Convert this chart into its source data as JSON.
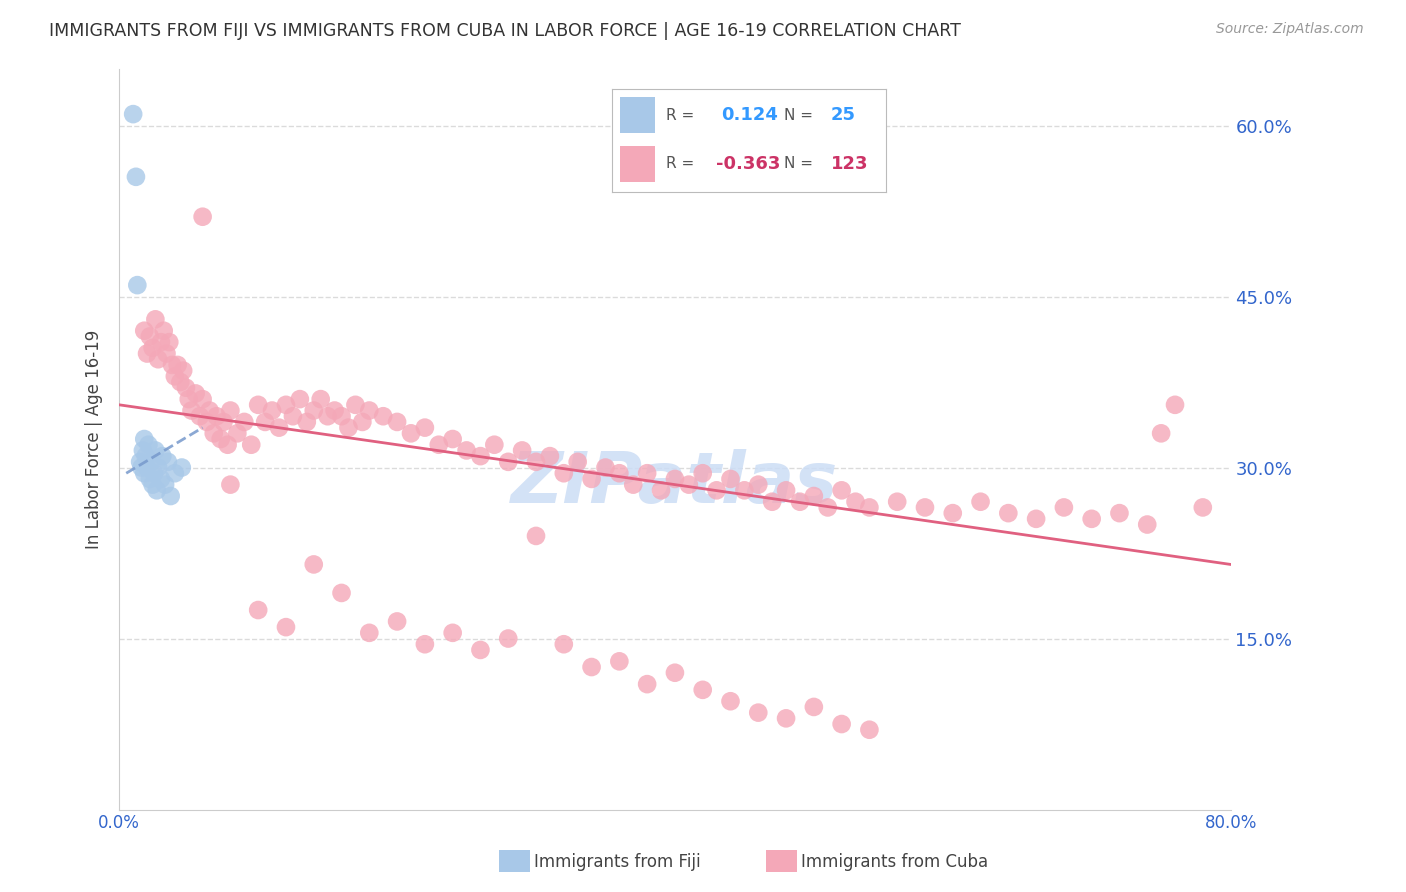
{
  "title": "IMMIGRANTS FROM FIJI VS IMMIGRANTS FROM CUBA IN LABOR FORCE | AGE 16-19 CORRELATION CHART",
  "source": "Source: ZipAtlas.com",
  "ylabel": "In Labor Force | Age 16-19",
  "xlim": [
    0.0,
    0.8
  ],
  "ylim": [
    0.0,
    0.65
  ],
  "xtick_values": [
    0.0,
    0.1,
    0.2,
    0.3,
    0.4,
    0.5,
    0.6,
    0.7,
    0.8
  ],
  "xticklabels": [
    "0.0%",
    "",
    "",
    "",
    "",
    "",
    "",
    "",
    "80.0%"
  ],
  "ytick_right_labels": [
    "60.0%",
    "45.0%",
    "30.0%",
    "15.0%"
  ],
  "ytick_right_values": [
    0.6,
    0.45,
    0.3,
    0.15
  ],
  "grid_color": "#cccccc",
  "fiji_color": "#a8c8e8",
  "cuba_color": "#f4a8b8",
  "fiji_trend_color": "#7799cc",
  "cuba_trend_color": "#e06080",
  "fiji_R": 0.124,
  "fiji_N": 25,
  "cuba_R": -0.363,
  "cuba_N": 123,
  "fiji_trend_x": [
    0.005,
    0.06
  ],
  "fiji_trend_y": [
    0.295,
    0.335
  ],
  "cuba_trend_x": [
    0.0,
    0.8
  ],
  "cuba_trend_y": [
    0.355,
    0.215
  ],
  "watermark_text": "ZIPatlas",
  "watermark_color": "#ccddf5",
  "background_color": "#ffffff",
  "legend_fiji_label": "Immigrants from Fiji",
  "legend_cuba_label": "Immigrants from Cuba",
  "legend_R_color": "#3399ff",
  "legend_cuba_R_color": "#cc3366",
  "fiji_x": [
    0.01,
    0.012,
    0.013,
    0.015,
    0.016,
    0.017,
    0.018,
    0.018,
    0.019,
    0.02,
    0.021,
    0.022,
    0.023,
    0.024,
    0.025,
    0.026,
    0.027,
    0.028,
    0.03,
    0.031,
    0.033,
    0.035,
    0.037,
    0.04,
    0.045
  ],
  "fiji_y": [
    0.61,
    0.555,
    0.46,
    0.305,
    0.3,
    0.315,
    0.325,
    0.295,
    0.31,
    0.3,
    0.32,
    0.29,
    0.305,
    0.285,
    0.295,
    0.315,
    0.28,
    0.3,
    0.29,
    0.31,
    0.285,
    0.305,
    0.275,
    0.295,
    0.3
  ],
  "cuba_x": [
    0.018,
    0.02,
    0.022,
    0.024,
    0.026,
    0.028,
    0.03,
    0.032,
    0.034,
    0.036,
    0.038,
    0.04,
    0.042,
    0.044,
    0.046,
    0.048,
    0.05,
    0.052,
    0.055,
    0.058,
    0.06,
    0.063,
    0.065,
    0.068,
    0.07,
    0.073,
    0.075,
    0.078,
    0.08,
    0.085,
    0.09,
    0.095,
    0.1,
    0.105,
    0.11,
    0.115,
    0.12,
    0.125,
    0.13,
    0.135,
    0.14,
    0.145,
    0.15,
    0.155,
    0.16,
    0.165,
    0.17,
    0.175,
    0.18,
    0.19,
    0.2,
    0.21,
    0.22,
    0.23,
    0.24,
    0.25,
    0.26,
    0.27,
    0.28,
    0.29,
    0.3,
    0.31,
    0.32,
    0.33,
    0.34,
    0.35,
    0.36,
    0.37,
    0.38,
    0.39,
    0.4,
    0.41,
    0.42,
    0.43,
    0.44,
    0.45,
    0.46,
    0.47,
    0.48,
    0.49,
    0.5,
    0.51,
    0.52,
    0.53,
    0.54,
    0.56,
    0.58,
    0.6,
    0.62,
    0.64,
    0.66,
    0.68,
    0.7,
    0.72,
    0.74,
    0.06,
    0.08,
    0.1,
    0.12,
    0.14,
    0.16,
    0.18,
    0.2,
    0.22,
    0.24,
    0.26,
    0.28,
    0.3,
    0.32,
    0.34,
    0.36,
    0.38,
    0.4,
    0.42,
    0.44,
    0.46,
    0.48,
    0.5,
    0.52,
    0.54,
    0.76,
    0.78,
    0.75
  ],
  "cuba_y": [
    0.42,
    0.4,
    0.415,
    0.405,
    0.43,
    0.395,
    0.41,
    0.42,
    0.4,
    0.41,
    0.39,
    0.38,
    0.39,
    0.375,
    0.385,
    0.37,
    0.36,
    0.35,
    0.365,
    0.345,
    0.36,
    0.34,
    0.35,
    0.33,
    0.345,
    0.325,
    0.34,
    0.32,
    0.35,
    0.33,
    0.34,
    0.32,
    0.355,
    0.34,
    0.35,
    0.335,
    0.355,
    0.345,
    0.36,
    0.34,
    0.35,
    0.36,
    0.345,
    0.35,
    0.345,
    0.335,
    0.355,
    0.34,
    0.35,
    0.345,
    0.34,
    0.33,
    0.335,
    0.32,
    0.325,
    0.315,
    0.31,
    0.32,
    0.305,
    0.315,
    0.305,
    0.31,
    0.295,
    0.305,
    0.29,
    0.3,
    0.295,
    0.285,
    0.295,
    0.28,
    0.29,
    0.285,
    0.295,
    0.28,
    0.29,
    0.28,
    0.285,
    0.27,
    0.28,
    0.27,
    0.275,
    0.265,
    0.28,
    0.27,
    0.265,
    0.27,
    0.265,
    0.26,
    0.27,
    0.26,
    0.255,
    0.265,
    0.255,
    0.26,
    0.25,
    0.52,
    0.285,
    0.175,
    0.16,
    0.215,
    0.19,
    0.155,
    0.165,
    0.145,
    0.155,
    0.14,
    0.15,
    0.24,
    0.145,
    0.125,
    0.13,
    0.11,
    0.12,
    0.105,
    0.095,
    0.085,
    0.08,
    0.09,
    0.075,
    0.07,
    0.355,
    0.265,
    0.33
  ]
}
